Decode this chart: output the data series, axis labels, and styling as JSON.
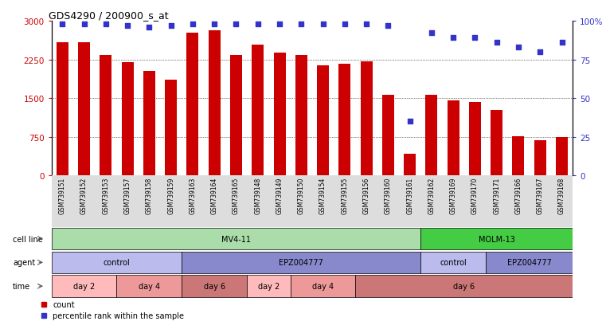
{
  "title": "GDS4290 / 200900_s_at",
  "samples": [
    "GSM739151",
    "GSM739152",
    "GSM739153",
    "GSM739157",
    "GSM739158",
    "GSM739159",
    "GSM739163",
    "GSM739164",
    "GSM739165",
    "GSM739148",
    "GSM739149",
    "GSM739150",
    "GSM739154",
    "GSM739155",
    "GSM739156",
    "GSM739160",
    "GSM739161",
    "GSM739162",
    "GSM739169",
    "GSM739170",
    "GSM739171",
    "GSM739166",
    "GSM739167",
    "GSM739168"
  ],
  "counts": [
    2580,
    2580,
    2340,
    2200,
    2030,
    1850,
    2760,
    2820,
    2330,
    2540,
    2380,
    2340,
    2140,
    2170,
    2210,
    1560,
    430,
    1570,
    1460,
    1430,
    1270,
    760,
    690,
    750
  ],
  "percentile_ranks": [
    98,
    98,
    98,
    97,
    96,
    97,
    98,
    98,
    98,
    98,
    98,
    98,
    98,
    98,
    98,
    97,
    35,
    92,
    89,
    89,
    86,
    83,
    80,
    86
  ],
  "bar_color": "#cc0000",
  "dot_color": "#3333cc",
  "ylim_left": [
    0,
    3000
  ],
  "ylim_right": [
    0,
    100
  ],
  "yticks_left": [
    0,
    750,
    1500,
    2250,
    3000
  ],
  "yticks_right": [
    0,
    25,
    50,
    75,
    100
  ],
  "ytick_labels_left": [
    "0",
    "750",
    "1500",
    "2250",
    "3000"
  ],
  "ytick_labels_right": [
    "0",
    "25",
    "50",
    "75",
    "100%"
  ],
  "grid_values": [
    750,
    1500,
    2250
  ],
  "cell_line_groups": [
    {
      "label": "MV4-11",
      "start": 0,
      "end": 17,
      "color": "#aaddaa"
    },
    {
      "label": "MOLM-13",
      "start": 17,
      "end": 24,
      "color": "#44cc44"
    }
  ],
  "agent_groups": [
    {
      "label": "control",
      "start": 0,
      "end": 6,
      "color": "#bbbbee"
    },
    {
      "label": "EPZ004777",
      "start": 6,
      "end": 17,
      "color": "#8888cc"
    },
    {
      "label": "control",
      "start": 17,
      "end": 20,
      "color": "#bbbbee"
    },
    {
      "label": "EPZ004777",
      "start": 20,
      "end": 24,
      "color": "#8888cc"
    }
  ],
  "time_groups": [
    {
      "label": "day 2",
      "start": 0,
      "end": 3,
      "color": "#ffbbbb"
    },
    {
      "label": "day 4",
      "start": 3,
      "end": 6,
      "color": "#ee9999"
    },
    {
      "label": "day 6",
      "start": 6,
      "end": 9,
      "color": "#cc7777"
    },
    {
      "label": "day 2",
      "start": 9,
      "end": 11,
      "color": "#ffbbbb"
    },
    {
      "label": "day 4",
      "start": 11,
      "end": 14,
      "color": "#ee9999"
    },
    {
      "label": "day 6",
      "start": 14,
      "end": 24,
      "color": "#cc7777"
    }
  ],
  "legend_items": [
    {
      "label": "count",
      "color": "#cc0000"
    },
    {
      "label": "percentile rank within the sample",
      "color": "#3333cc"
    }
  ],
  "background_color": "#ffffff"
}
